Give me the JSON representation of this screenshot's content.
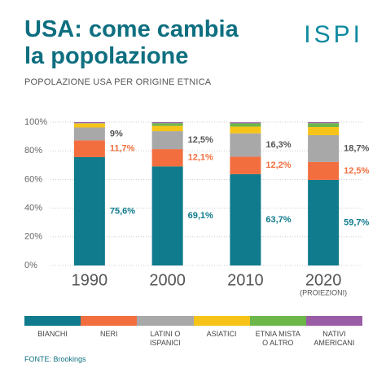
{
  "logo": "ISPI",
  "source": "FONTE: Brookings",
  "chart_data": {
    "type": "stacked-bar",
    "title": "USA: come cambia la popolazione",
    "subtitle": "POPOLAZIONE USA PER ORIGINE ETNICA",
    "categories": [
      "1990",
      "2000",
      "2010",
      "2020"
    ],
    "x_annotation": {
      "category": 3,
      "text": "(PROIEZIONI)"
    },
    "ylim": [
      0,
      100
    ],
    "yticks": [
      {
        "value": 0,
        "label": "0%"
      },
      {
        "value": 20,
        "label": "20%"
      },
      {
        "value": 40,
        "label": "40%"
      },
      {
        "value": 60,
        "label": "60%"
      },
      {
        "value": 80,
        "label": "80%"
      },
      {
        "value": 100,
        "label": "100%"
      }
    ],
    "grid": true,
    "series": [
      {
        "name": "BIANCHI",
        "color": "#0f7b8c",
        "values": [
          75.6,
          69.1,
          63.7,
          59.7
        ],
        "value_labels": [
          "75,6%",
          "69,1%",
          "63,7%",
          "59,7%"
        ],
        "label_color": "#0f7b8c"
      },
      {
        "name": "NERI",
        "color": "#f26e3f",
        "values": [
          11.7,
          12.1,
          12.2,
          12.5
        ],
        "value_labels": [
          "11,7%",
          "12,1%",
          "12,2%",
          "12,5%"
        ],
        "label_color": "#f26e3f"
      },
      {
        "name": "LATINI O ISPANICI",
        "color": "#a8a8a8",
        "values": [
          9,
          12.5,
          16.3,
          18.7
        ],
        "value_labels": [
          "9%",
          "12,5%",
          "16,3%",
          "18,7%"
        ],
        "label_color": "#555555"
      },
      {
        "name": "ASIATICI",
        "color": "#f6c419",
        "values": [
          2.8,
          3.7,
          4.7,
          5.7
        ]
      },
      {
        "name": "ETNIA MISTA O ALTRO",
        "color": "#6cb64a",
        "values": [
          0.2,
          1.9,
          2.3,
          2.7
        ]
      },
      {
        "name": "NATIVI AMERICANI",
        "color": "#9a5ca5",
        "values": [
          0.7,
          0.7,
          0.7,
          0.7
        ]
      }
    ]
  }
}
